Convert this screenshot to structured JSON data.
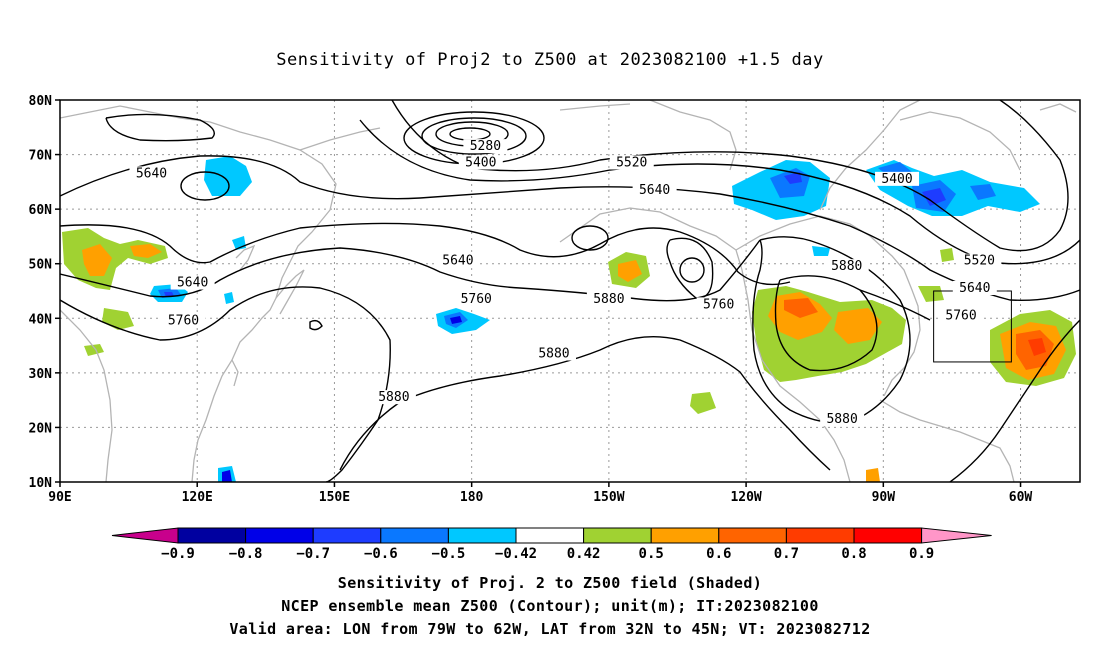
{
  "title": "Sensitivity of Proj2 to Z500 at 2023082100 +1.5 day",
  "lat_ticks": [
    {
      "value": 80,
      "label": "80N"
    },
    {
      "value": 70,
      "label": "70N"
    },
    {
      "value": 60,
      "label": "60N"
    },
    {
      "value": 50,
      "label": "50N"
    },
    {
      "value": 40,
      "label": "40N"
    },
    {
      "value": 30,
      "label": "30N"
    },
    {
      "value": 20,
      "label": "20N"
    },
    {
      "value": 10,
      "label": "10N"
    }
  ],
  "lon_ticks": [
    {
      "value": 90,
      "label": "90E"
    },
    {
      "value": 120,
      "label": "120E"
    },
    {
      "value": 150,
      "label": "150E"
    },
    {
      "value": 180,
      "label": "180"
    },
    {
      "value": 210,
      "label": "150W"
    },
    {
      "value": 240,
      "label": "120W"
    },
    {
      "value": 270,
      "label": "90W"
    },
    {
      "value": 300,
      "label": "60W"
    }
  ],
  "contour_labels": [
    {
      "text": "5640",
      "lon": 110,
      "lat": 66
    },
    {
      "text": "5280",
      "lon": 183,
      "lat": 71
    },
    {
      "text": "5400",
      "lon": 182,
      "lat": 68
    },
    {
      "text": "5520",
      "lon": 215,
      "lat": 68
    },
    {
      "text": "5640",
      "lon": 220,
      "lat": 63
    },
    {
      "text": "5400",
      "lon": 273,
      "lat": 65
    },
    {
      "text": "5640",
      "lon": 177,
      "lat": 50
    },
    {
      "text": "5640",
      "lon": 119,
      "lat": 46
    },
    {
      "text": "5760",
      "lon": 117,
      "lat": 39
    },
    {
      "text": "5760",
      "lon": 181,
      "lat": 43
    },
    {
      "text": "5880",
      "lon": 210,
      "lat": 43
    },
    {
      "text": "5760",
      "lon": 234,
      "lat": 42
    },
    {
      "text": "5880",
      "lon": 262,
      "lat": 49
    },
    {
      "text": "5520",
      "lon": 291,
      "lat": 50
    },
    {
      "text": "5640",
      "lon": 290,
      "lat": 45
    },
    {
      "text": "5760",
      "lon": 287,
      "lat": 40
    },
    {
      "text": "5880",
      "lon": 198,
      "lat": 33
    },
    {
      "text": "5880",
      "lon": 163,
      "lat": 25
    },
    {
      "text": "5880",
      "lon": 261,
      "lat": 21
    }
  ],
  "colorbar": {
    "labels": [
      "−0.9",
      "−0.8",
      "−0.7",
      "−0.6",
      "−0.5",
      "−0.42",
      "0.42",
      "0.5",
      "0.6",
      "0.7",
      "0.8",
      "0.9"
    ],
    "colors": [
      "#0000a0",
      "#0000e8",
      "#1e3cff",
      "#0a78ff",
      "#00c8ff",
      "#ffffff",
      "#a0d232",
      "#ffa000",
      "#ff6400",
      "#ff3c00",
      "#ff0000"
    ],
    "left_tip_color": "#c8008c",
    "right_tip_color": "#ff96c8"
  },
  "valid_box": {
    "lon_min": 281,
    "lon_max": 298,
    "lat_min": 32,
    "lat_max": 45
  },
  "captions": [
    "Sensitivity of Proj. 2 to Z500 field (Shaded)",
    "NCEP ensemble mean Z500 (Contour); unit(m); IT:2023082100",
    "Valid area: LON from 79W to 62W, LAT from 32N to 45N; VT: 2023082712"
  ]
}
